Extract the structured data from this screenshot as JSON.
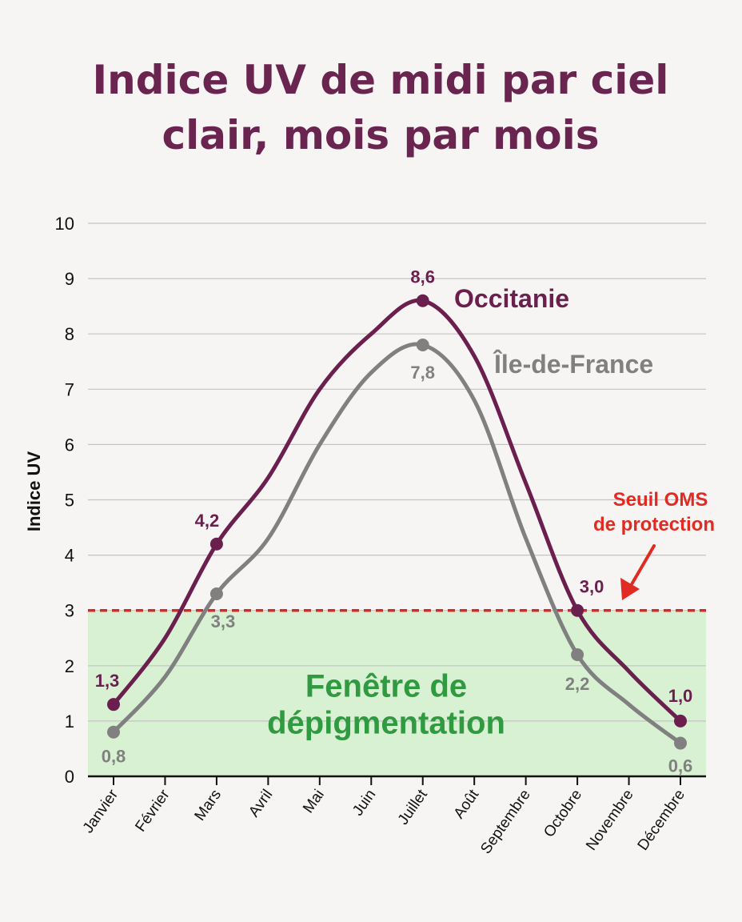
{
  "chart_data": {
    "type": "line",
    "title": [
      "Indice UV de midi par ciel",
      "clair, mois par mois"
    ],
    "ylabel": "Indice UV",
    "xlabel": "",
    "ylim": [
      0,
      10
    ],
    "yticks": [
      "0",
      "1",
      "2",
      "3",
      "4",
      "5",
      "6",
      "7",
      "8",
      "9",
      "10"
    ],
    "categories": [
      "Janvier",
      "Février",
      "Mars",
      "Avril",
      "Mai",
      "Juin",
      "Juillet",
      "Août",
      "Septembre",
      "Octobre",
      "Novembre",
      "Décembre"
    ],
    "grid": true,
    "series": [
      {
        "name": "Occitanie",
        "color": "#6a1f4e",
        "values": [
          1.3,
          2.5,
          4.2,
          5.4,
          7.0,
          8.0,
          8.6,
          7.6,
          5.3,
          3.0,
          1.9,
          1.0
        ],
        "labeled_points": [
          {
            "index": 0,
            "label": "1,3"
          },
          {
            "index": 2,
            "label": "4,2"
          },
          {
            "index": 6,
            "label": "8,6"
          },
          {
            "index": 9,
            "label": "3,0"
          },
          {
            "index": 11,
            "label": "1,0"
          }
        ]
      },
      {
        "name": "Île-de-France",
        "color": "#808080",
        "values": [
          0.8,
          1.8,
          3.3,
          4.3,
          6.0,
          7.3,
          7.8,
          6.8,
          4.3,
          2.2,
          1.3,
          0.6
        ],
        "labeled_points": [
          {
            "index": 0,
            "label": "0,8"
          },
          {
            "index": 2,
            "label": "3,3"
          },
          {
            "index": 6,
            "label": "7,8"
          },
          {
            "index": 9,
            "label": "2,2"
          },
          {
            "index": 11,
            "label": "0,6"
          }
        ]
      }
    ],
    "threshold": {
      "value": 3,
      "color": "#d42a2a",
      "label": [
        "Seuil OMS",
        "de protection"
      ]
    },
    "zone": {
      "from": 0,
      "to": 3,
      "color": "#d8f1d3",
      "label": [
        "Fenêtre de",
        "dépigmentation"
      ]
    }
  }
}
